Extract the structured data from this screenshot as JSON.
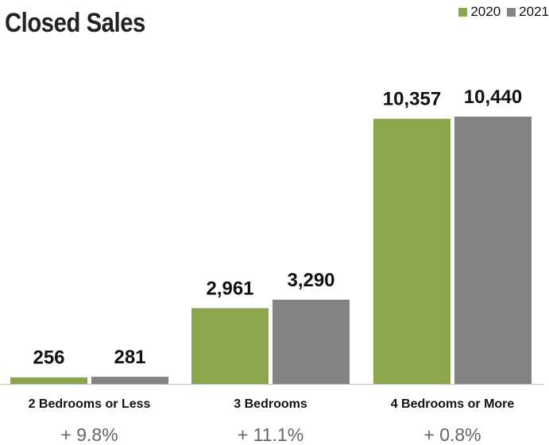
{
  "colors": {
    "series_2020": "#8ca64e",
    "series_2021": "#838383",
    "axis": "#bfbfbf"
  },
  "chart_data": {
    "type": "bar",
    "title": "Closed Sales",
    "categories": [
      "2 Bedrooms or Less",
      "3 Bedrooms",
      "4 Bedrooms or More"
    ],
    "series": [
      {
        "name": "2020",
        "values": [
          256,
          2961,
          10357
        ],
        "labels": [
          "256",
          "2,961",
          "10,357"
        ]
      },
      {
        "name": "2021",
        "values": [
          281,
          3290,
          10440
        ],
        "labels": [
          "281",
          "3,290",
          "10,440"
        ]
      }
    ],
    "changes": [
      "+ 9.8%",
      "+ 11.1%",
      "+ 0.8%"
    ],
    "ylim": [
      0,
      10440
    ],
    "legend_position": "top-right",
    "grid": false
  }
}
